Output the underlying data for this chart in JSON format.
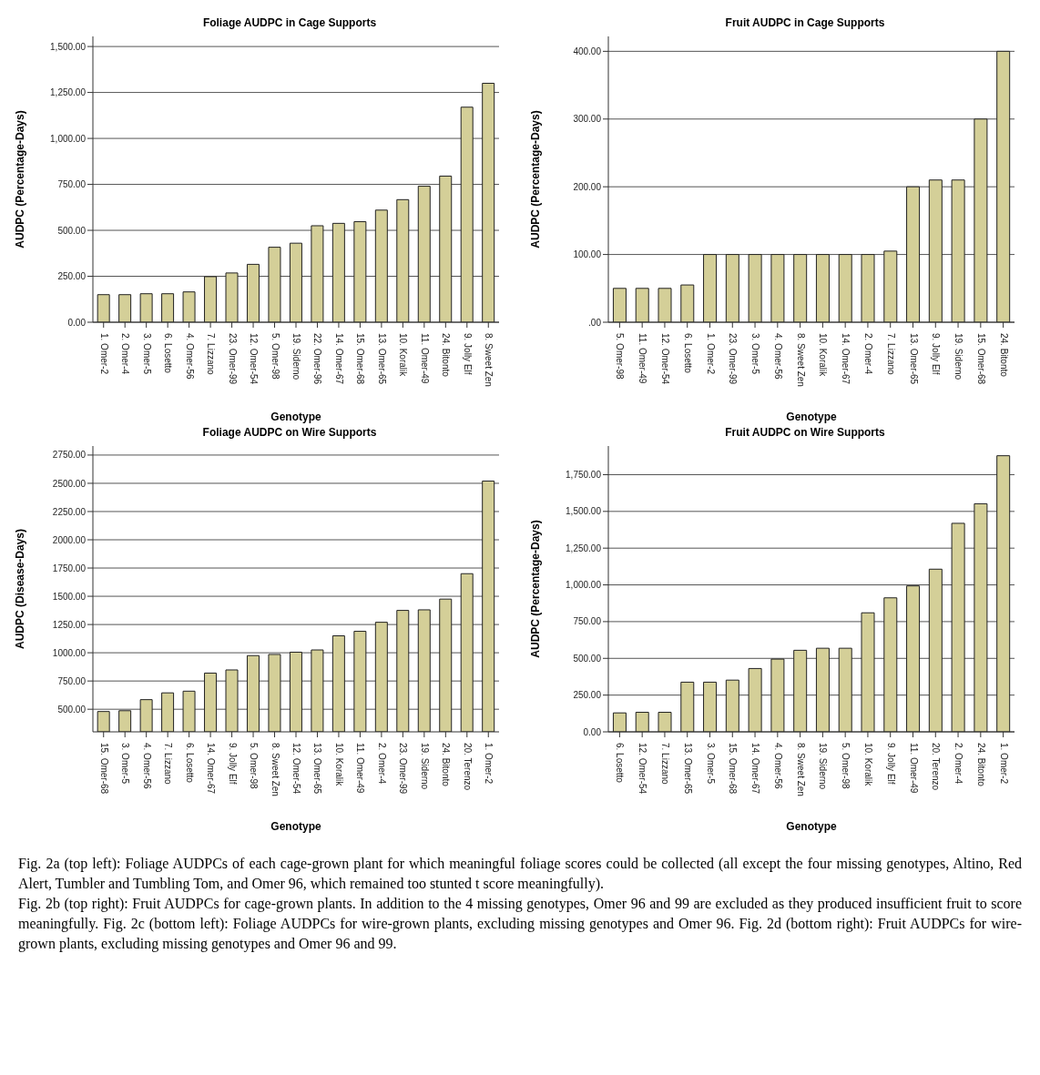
{
  "chart_data": [
    {
      "type": "bar",
      "title": "Foliage AUDPC in Cage Supports",
      "xlabel": "Genotype",
      "ylabel": "AUDPC (Percentage-Days)",
      "grid": "y",
      "color": "#d4cf98",
      "categories": [
        "1. Omer-2",
        "2. Omer-4",
        "3. Omer-5",
        "6. Losetto",
        "4. Omer-56",
        "7. Lizzano",
        "23. Omer-99",
        "12. Omer-54",
        "5. Omer-98",
        "19. Siderno",
        "22. Omer-96",
        "14. Omer-67",
        "15. Omer-68",
        "13. Omer-65",
        "10. Koralik",
        "11. Omer-49",
        "24. Bitonto",
        "9. Jolly Elf",
        "8. Sweet Zen"
      ],
      "values": [
        150,
        150,
        155,
        155,
        165,
        248,
        268,
        315,
        408,
        430,
        525,
        538,
        547,
        610,
        667,
        740,
        795,
        1170,
        1300
      ],
      "ylim": [
        0,
        1555
      ],
      "yticks": [
        {
          "value": 0,
          "label": "0.00"
        },
        {
          "value": 250,
          "label": "250.00"
        },
        {
          "value": 500,
          "label": "500.00"
        },
        {
          "value": 750,
          "label": "750.00"
        },
        {
          "value": 1000,
          "label": "1,000.00"
        },
        {
          "value": 1250,
          "label": "1,250.00"
        },
        {
          "value": 1500,
          "label": "1,500.00"
        }
      ]
    },
    {
      "type": "bar",
      "title": "Fruit AUDPC in Cage Supports",
      "xlabel": "Genotype",
      "ylabel": "AUDPC (Percentage-Days)",
      "grid": "y",
      "color": "#d4cf98",
      "categories": [
        "5. Omer-98",
        "11. Omer-49",
        "12. Omer-54",
        "6. Losetto",
        "1. Omer-2",
        "23. Omer-99",
        "3. Omer-5",
        "4. Omer-56",
        "8. Sweet Zen",
        "10. Koralik",
        "14. Omer-67",
        "2. Omer-4",
        "7. Lizzano",
        "13. Omer-65",
        "9. Jolly Elf",
        "19. Siderno",
        "15. Omer-68",
        "24. Bitonto"
      ],
      "values": [
        50,
        50,
        50,
        55,
        100,
        100,
        100,
        100,
        100,
        100,
        100,
        100,
        105,
        200,
        210,
        210,
        300,
        400
      ],
      "ylim": [
        0,
        422
      ],
      "yticks": [
        {
          "value": 0,
          "label": ".00"
        },
        {
          "value": 100,
          "label": "100.00"
        },
        {
          "value": 200,
          "label": "200.00"
        },
        {
          "value": 300,
          "label": "300.00"
        },
        {
          "value": 400,
          "label": "400.00"
        }
      ]
    },
    {
      "type": "bar",
      "title": "Foliage AUDPC on Wire Supports",
      "xlabel": "Genotype",
      "ylabel": "AUDPC (Disease-Days)",
      "grid": "y",
      "color": "#d4cf98",
      "categories": [
        "15. Omer-68",
        "3. Omer-5",
        "4. Omer-56",
        "7. Lizzano",
        "6. Losetto",
        "14. Omer-67",
        "9. Jolly Elf",
        "5. Omer-98",
        "8. Sweet Zen",
        "12. Omer-54",
        "13. Omer-65",
        "10. Koralik",
        "11. Omer-49",
        "2. Omer-4",
        "23. Omer-99",
        "19. Siderno",
        "24. Bitonto",
        "20. Terenzo",
        "1. Omer-2"
      ],
      "values": [
        480,
        487,
        585,
        645,
        660,
        820,
        848,
        975,
        985,
        1005,
        1025,
        1150,
        1190,
        1270,
        1375,
        1380,
        1475,
        1700,
        2520
      ],
      "ylim": [
        300,
        2830
      ],
      "yticks": [
        {
          "value": 500,
          "label": "500.00"
        },
        {
          "value": 750,
          "label": "750.00"
        },
        {
          "value": 1000,
          "label": "1000.00"
        },
        {
          "value": 1250,
          "label": "1250.00"
        },
        {
          "value": 1500,
          "label": "1500.00"
        },
        {
          "value": 1750,
          "label": "1750.00"
        },
        {
          "value": 2000,
          "label": "2000.00"
        },
        {
          "value": 2250,
          "label": "2250.00"
        },
        {
          "value": 2500,
          "label": "2500.00"
        },
        {
          "value": 2750,
          "label": "2750.00"
        }
      ]
    },
    {
      "type": "bar",
      "title": "Fruit AUDPC on Wire Supports",
      "xlabel": "Genotype",
      "ylabel": "AUDPC (Percentage-Days)",
      "grid": "y",
      "color": "#d4cf98",
      "categories": [
        "6. Losetto",
        "12. Omer-54",
        "7. Lizzano",
        "13. Omer-65",
        "3. Omer-5",
        "15. Omer-68",
        "14. Omer-67",
        "4. Omer-56",
        "8. Sweet Zen",
        "19. Siderno",
        "5. Omer-98",
        "10. Koralik",
        "9. Jolly Elf",
        "11. Omer-49",
        "20. Terenzo",
        "2. Omer-4",
        "24. Bitonto",
        "1. Omer-2"
      ],
      "values": [
        129,
        133,
        133,
        338,
        338,
        352,
        431,
        495,
        555,
        569,
        569,
        810,
        912,
        993,
        1107,
        1419,
        1552,
        1879
      ],
      "ylim": [
        0,
        1945
      ],
      "yticks": [
        {
          "value": 0,
          "label": "0.00"
        },
        {
          "value": 250,
          "label": "250.00"
        },
        {
          "value": 500,
          "label": "500.00"
        },
        {
          "value": 750,
          "label": "750.00"
        },
        {
          "value": 1000,
          "label": "1,000.00"
        },
        {
          "value": 1250,
          "label": "1,250.00"
        },
        {
          "value": 1500,
          "label": "1,500.00"
        },
        {
          "value": 1750,
          "label": "1,750.00"
        }
      ],
      "annotations": [
        "Fig. 2a (top left): Foliage AUDPCs of each cage-grown plant for which meaningful foliage scores could be collected (all except the four missing genotypes, Altino, Red Alert, Tumbler and Tumbling Tom, and Omer 96, which remained too stunted t score meaningfully).",
        "Fig. 2b (top right): Fruit AUDPCs for cage-grown plants. In addition to the 4 missing genotypes, Omer 96 and 99 are excluded as they produced insufficient fruit to score meaningfully. Fig. 2c (bottom left): Foliage AUDPCs for wire-grown plants, excluding missing genotypes and Omer 96. Fig. 2d (bottom right): Fruit AUDPCs for wire-grown plants, excluding missing genotypes and Omer 96 and 99."
      ]
    }
  ]
}
